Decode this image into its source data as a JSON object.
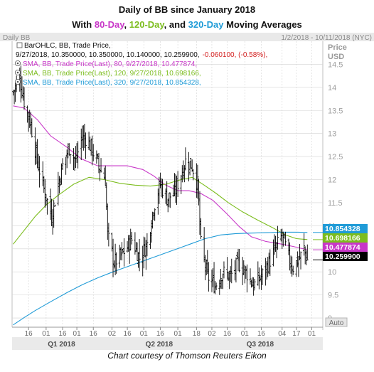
{
  "title_line1": "Daily of BB since January 2018",
  "title_line2": {
    "prefix": "With ",
    "ma80": "80-Day",
    "sep1": ", ",
    "ma120": "120-Day",
    "sep2": ", and ",
    "ma320": "320-Day",
    "suffix": " Moving Averages"
  },
  "panel_label": "Daily BB",
  "date_range": "1/2/2018 - 10/11/2018 (NYC)",
  "price_label": "Price",
  "currency_label": "USD",
  "auto_label": "Auto",
  "footer": "Chart courtesy of Thomson Reuters Eikon",
  "legend": {
    "bar_header": "BarOHLC, BB, Trade Price,",
    "bar_values": "9/27/2018, 10.350000, 10.350000, 10.140000, 10.259900,",
    "bar_change": "-0.060100, (-0.58%),",
    "sma80": "SMA, BB, Trade Price(Last),   80,  9/27/2018, 10.477874,",
    "sma120": "SMA, BB, Trade Price(Last),   120,  9/27/2018, 10.698166,",
    "sma320": "SMA, BB, Trade Price(Last),   320,  9/27/2018, 10.854328,"
  },
  "colors": {
    "sma80": "#c837c8",
    "sma120": "#7cbd1e",
    "sma320": "#1f9bd7",
    "bars": "#000000",
    "last_price_bg": "#000000",
    "change_text": "#d42020",
    "grid": "#d4d4d4"
  },
  "chart_data": {
    "type": "line",
    "title": "Daily of BB since January 2018",
    "ylim": [
      8.8,
      15.0
    ],
    "y_ticks": [
      9,
      9.5,
      10,
      10.5,
      11,
      11.5,
      12,
      12.5,
      13,
      13.5,
      14,
      14.5
    ],
    "y_tick_labels": [
      "9",
      "9.5",
      "10",
      "10.5",
      "11",
      "11.5",
      "12",
      "12.5",
      "13",
      "13.5",
      "14",
      "14.5"
    ],
    "x_ticks": [
      {
        "date": "2018-01-16",
        "label": "16"
      },
      {
        "date": "2018-02-01",
        "label": "01"
      },
      {
        "date": "2018-02-16",
        "label": "16"
      },
      {
        "date": "2018-03-01",
        "label": "01"
      },
      {
        "date": "2018-03-16",
        "label": "16"
      },
      {
        "date": "2018-04-02",
        "label": "02"
      },
      {
        "date": "2018-04-16",
        "label": "16"
      },
      {
        "date": "2018-05-01",
        "label": "01"
      },
      {
        "date": "2018-05-16",
        "label": "16"
      },
      {
        "date": "2018-06-01",
        "label": "01"
      },
      {
        "date": "2018-06-18",
        "label": "18"
      },
      {
        "date": "2018-07-02",
        "label": "02"
      },
      {
        "date": "2018-07-16",
        "label": "16"
      },
      {
        "date": "2018-08-01",
        "label": "01"
      },
      {
        "date": "2018-08-16",
        "label": "16"
      },
      {
        "date": "2018-09-04",
        "label": "04"
      },
      {
        "date": "2018-09-17",
        "label": "17"
      },
      {
        "date": "2018-10-01",
        "label": "01"
      }
    ],
    "quarter_labels": [
      {
        "date": "2018-02-15",
        "label": "Q1 2018"
      },
      {
        "date": "2018-05-15",
        "label": "Q2 2018"
      },
      {
        "date": "2018-08-15",
        "label": "Q3 2018"
      }
    ],
    "price_tags": [
      {
        "label": "10.854328",
        "value": 10.854328,
        "color": "#1f9bd7"
      },
      {
        "label": "10.698166",
        "value": 10.698166,
        "color": "#7cbd1e"
      },
      {
        "label": "10.477874",
        "value": 10.477874,
        "color": "#c837c8"
      },
      {
        "label": "10.259900",
        "value": 10.2599,
        "color": "#000000"
      }
    ],
    "close_anchors": [
      [
        "2018-01-02",
        13.9
      ],
      [
        "2018-01-08",
        14.2
      ],
      [
        "2018-01-12",
        13.7
      ],
      [
        "2018-01-18",
        13.2
      ],
      [
        "2018-01-24",
        12.4
      ],
      [
        "2018-01-30",
        11.8
      ],
      [
        "2018-02-06",
        11.2
      ],
      [
        "2018-02-12",
        11.9
      ],
      [
        "2018-02-16",
        12.3
      ],
      [
        "2018-02-22",
        12.7
      ],
      [
        "2018-02-28",
        12.4
      ],
      [
        "2018-03-05",
        12.9
      ],
      [
        "2018-03-09",
        12.9
      ],
      [
        "2018-03-14",
        12.7
      ],
      [
        "2018-03-21",
        12.3
      ],
      [
        "2018-03-27",
        12.0
      ],
      [
        "2018-03-29",
        10.8
      ],
      [
        "2018-04-04",
        10.2
      ],
      [
        "2018-04-12",
        10.4
      ],
      [
        "2018-04-20",
        10.7
      ],
      [
        "2018-04-27",
        10.3
      ],
      [
        "2018-05-04",
        10.6
      ],
      [
        "2018-05-10",
        11.4
      ],
      [
        "2018-05-16",
        11.9
      ],
      [
        "2018-05-22",
        11.6
      ],
      [
        "2018-05-29",
        11.7
      ],
      [
        "2018-06-05",
        12.2
      ],
      [
        "2018-06-08",
        12.4
      ],
      [
        "2018-06-14",
        12.3
      ],
      [
        "2018-06-19",
        11.9
      ],
      [
        "2018-06-22",
        10.6
      ],
      [
        "2018-06-28",
        9.9
      ],
      [
        "2018-07-05",
        9.7
      ],
      [
        "2018-07-12",
        10.0
      ],
      [
        "2018-07-19",
        9.9
      ],
      [
        "2018-07-26",
        10.2
      ],
      [
        "2018-08-02",
        10.0
      ],
      [
        "2018-08-09",
        9.7
      ],
      [
        "2018-08-16",
        9.9
      ],
      [
        "2018-08-23",
        10.2
      ],
      [
        "2018-08-29",
        10.5
      ],
      [
        "2018-09-04",
        10.8
      ],
      [
        "2018-09-10",
        10.3
      ],
      [
        "2018-09-14",
        10.1
      ],
      [
        "2018-09-20",
        10.3
      ],
      [
        "2018-09-24",
        10.5
      ],
      [
        "2018-09-27",
        10.26
      ]
    ],
    "series": [
      {
        "name": "SMA 80",
        "color": "#c837c8",
        "points": [
          [
            "2018-01-02",
            13.6
          ],
          [
            "2018-01-12",
            13.55
          ],
          [
            "2018-01-24",
            13.3
          ],
          [
            "2018-02-05",
            12.95
          ],
          [
            "2018-02-20",
            12.7
          ],
          [
            "2018-03-05",
            12.45
          ],
          [
            "2018-03-20",
            12.3
          ],
          [
            "2018-04-02",
            12.3
          ],
          [
            "2018-04-16",
            12.3
          ],
          [
            "2018-04-30",
            12.22
          ],
          [
            "2018-05-10",
            12.08
          ],
          [
            "2018-05-21",
            11.88
          ],
          [
            "2018-06-01",
            11.76
          ],
          [
            "2018-06-11",
            11.76
          ],
          [
            "2018-06-22",
            11.7
          ],
          [
            "2018-07-03",
            11.55
          ],
          [
            "2018-07-16",
            11.25
          ],
          [
            "2018-07-27",
            10.98
          ],
          [
            "2018-08-07",
            10.76
          ],
          [
            "2018-08-20",
            10.66
          ],
          [
            "2018-09-04",
            10.6
          ],
          [
            "2018-09-14",
            10.55
          ],
          [
            "2018-09-27",
            10.48
          ]
        ]
      },
      {
        "name": "SMA 120",
        "color": "#7cbd1e",
        "points": [
          [
            "2018-01-02",
            10.6
          ],
          [
            "2018-01-12",
            10.9
          ],
          [
            "2018-01-22",
            11.2
          ],
          [
            "2018-02-01",
            11.45
          ],
          [
            "2018-02-12",
            11.66
          ],
          [
            "2018-02-26",
            11.9
          ],
          [
            "2018-03-12",
            12.05
          ],
          [
            "2018-03-26",
            12.0
          ],
          [
            "2018-04-09",
            11.92
          ],
          [
            "2018-04-23",
            11.88
          ],
          [
            "2018-05-07",
            11.86
          ],
          [
            "2018-05-21",
            11.9
          ],
          [
            "2018-06-04",
            12.0
          ],
          [
            "2018-06-14",
            12.05
          ],
          [
            "2018-06-25",
            11.88
          ],
          [
            "2018-07-06",
            11.7
          ],
          [
            "2018-07-17",
            11.5
          ],
          [
            "2018-07-30",
            11.3
          ],
          [
            "2018-08-13",
            11.12
          ],
          [
            "2018-08-27",
            10.95
          ],
          [
            "2018-09-07",
            10.8
          ],
          [
            "2018-09-17",
            10.72
          ],
          [
            "2018-09-27",
            10.7
          ]
        ]
      },
      {
        "name": "SMA 320",
        "color": "#1f9bd7",
        "points": [
          [
            "2018-01-02",
            8.85
          ],
          [
            "2018-01-12",
            9.01
          ],
          [
            "2018-01-22",
            9.16
          ],
          [
            "2018-02-05",
            9.35
          ],
          [
            "2018-02-20",
            9.55
          ],
          [
            "2018-03-06",
            9.72
          ],
          [
            "2018-03-20",
            9.87
          ],
          [
            "2018-04-03",
            10.0
          ],
          [
            "2018-04-17",
            10.12
          ],
          [
            "2018-05-01",
            10.24
          ],
          [
            "2018-05-15",
            10.36
          ],
          [
            "2018-05-29",
            10.48
          ],
          [
            "2018-06-12",
            10.6
          ],
          [
            "2018-06-26",
            10.72
          ],
          [
            "2018-07-10",
            10.8
          ],
          [
            "2018-07-24",
            10.83
          ],
          [
            "2018-08-07",
            10.84
          ],
          [
            "2018-08-21",
            10.85
          ],
          [
            "2018-09-04",
            10.86
          ],
          [
            "2018-09-18",
            10.86
          ],
          [
            "2018-09-27",
            10.854
          ]
        ]
      }
    ]
  }
}
